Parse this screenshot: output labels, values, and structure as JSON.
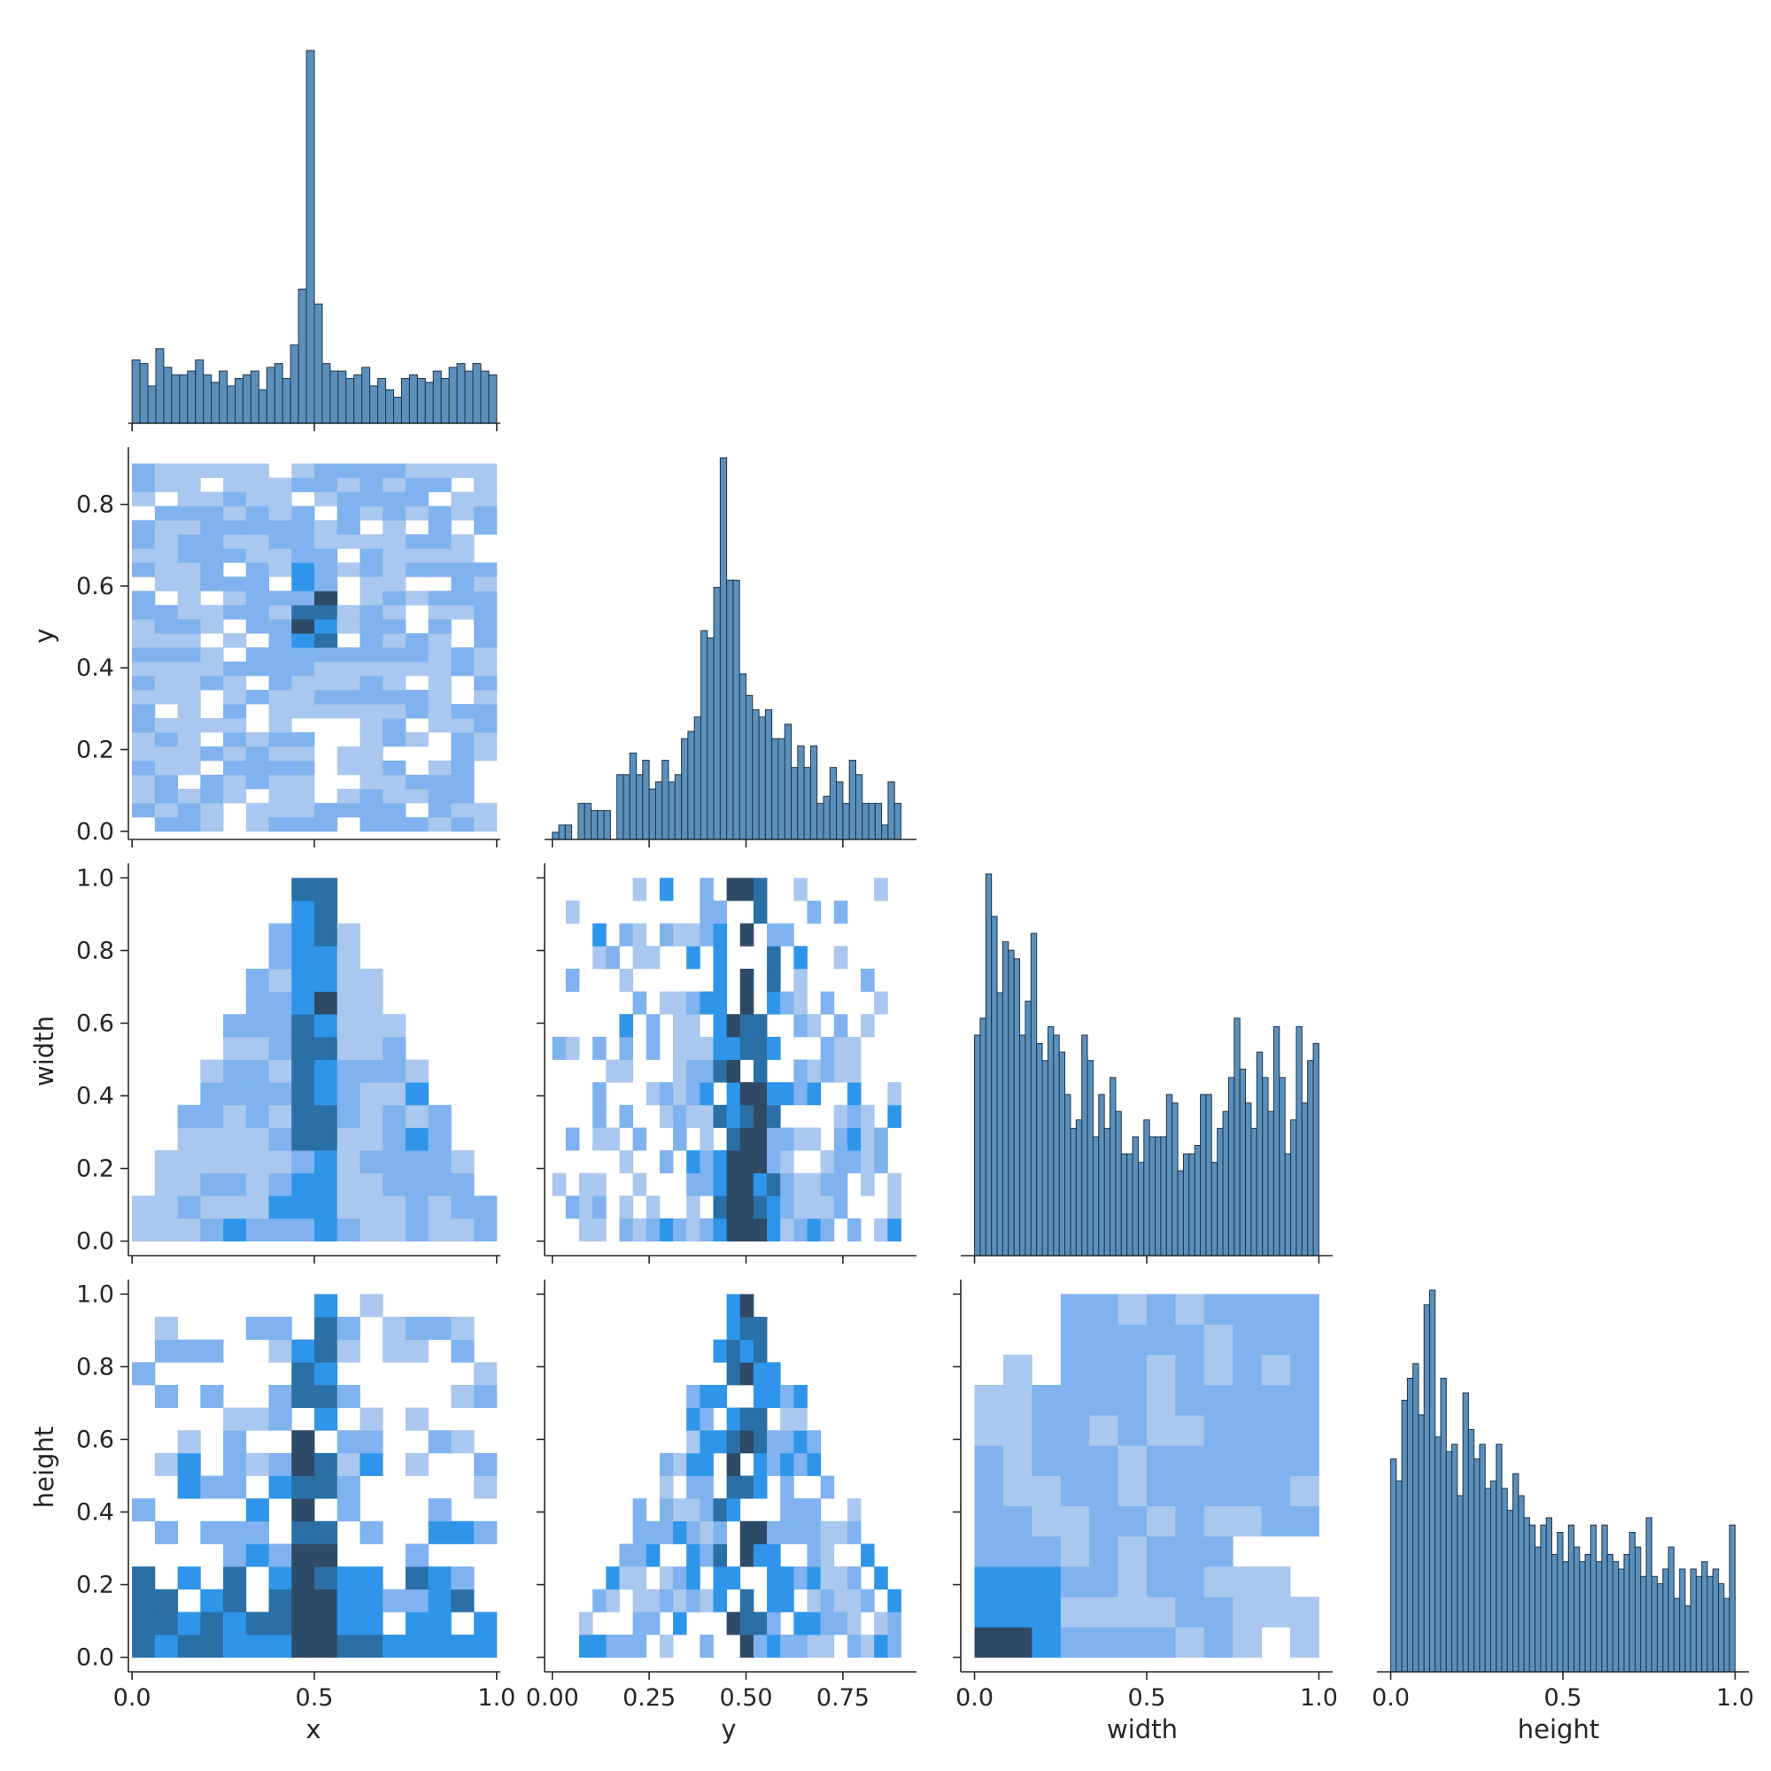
{
  "chart_data": {
    "type": "heatmap",
    "layout": "corner pairplot (diagonal histograms, lower-triangle 2D histograms)",
    "variables": [
      "x",
      "y",
      "width",
      "height"
    ],
    "axis_labels": {
      "x": "x",
      "y": "y",
      "width": "width",
      "height": "height"
    },
    "axis_ranges": {
      "x": [
        -0.01,
        1.01
      ],
      "y": [
        -0.02,
        0.94
      ],
      "width": [
        -0.04,
        1.04
      ],
      "height": [
        -0.04,
        1.04
      ]
    },
    "ticks": {
      "x": {
        "values": [
          0.0,
          0.5,
          1.0
        ],
        "labels": [
          "0.0",
          "0.5",
          "1.0"
        ]
      },
      "y": {
        "values": [
          0.0,
          0.25,
          0.5,
          0.75
        ],
        "labels": [
          "0.00",
          "0.25",
          "0.50",
          "0.75"
        ]
      },
      "y_on_y_axis": {
        "values": [
          0.0,
          0.2,
          0.4,
          0.6,
          0.8
        ],
        "labels": [
          "0.0",
          "0.2",
          "0.4",
          "0.6",
          "0.8"
        ]
      },
      "width": {
        "values": [
          0.0,
          0.5,
          1.0
        ],
        "labels": [
          "0.0",
          "0.5",
          "1.0"
        ]
      },
      "width_on_y_axis": {
        "values": [
          0.0,
          0.2,
          0.4,
          0.6,
          0.8,
          1.0
        ],
        "labels": [
          "0.0",
          "0.2",
          "0.4",
          "0.6",
          "0.8",
          "1.0"
        ]
      },
      "height": {
        "values": [
          0.0,
          0.5,
          1.0
        ],
        "labels": [
          "0.0",
          "0.5",
          "1.0"
        ]
      },
      "height_on_y_axis": {
        "values": [
          0.0,
          0.2,
          0.4,
          0.6,
          0.8,
          1.0
        ],
        "labels": [
          "0.0",
          "0.2",
          "0.4",
          "0.6",
          "0.8",
          "1.0"
        ]
      }
    },
    "histograms": {
      "x": {
        "range": [
          0.0,
          1.0
        ],
        "counts": [
          17,
          16,
          10,
          20,
          15,
          13,
          13,
          14,
          17,
          13,
          11,
          14,
          10,
          12,
          13,
          14,
          9,
          15,
          16,
          12,
          21,
          36,
          100,
          32,
          16,
          14,
          14,
          12,
          13,
          15,
          10,
          12,
          9,
          7,
          12,
          13,
          12,
          11,
          14,
          12,
          15,
          16,
          14,
          16,
          14,
          13
        ]
      },
      "y": {
        "range": [
          0.0,
          0.9
        ],
        "counts": [
          1,
          2,
          2,
          0,
          5,
          5,
          4,
          4,
          4,
          0,
          9,
          9,
          12,
          9,
          11,
          7,
          8,
          11,
          8,
          9,
          14,
          15,
          17,
          29,
          28,
          35,
          53,
          36,
          36,
          23,
          20,
          18,
          17,
          18,
          14,
          14,
          16,
          10,
          13,
          10,
          13,
          5,
          6,
          10,
          8,
          5,
          11,
          9,
          5,
          5,
          5,
          2,
          8,
          5
        ]
      },
      "width": {
        "range": [
          0.0,
          1.0
        ],
        "counts": [
          26,
          28,
          45,
          40,
          31,
          37,
          36,
          35,
          26,
          30,
          38,
          25,
          23,
          27,
          26,
          24,
          19,
          15,
          16,
          26,
          23,
          14,
          19,
          15,
          21,
          17,
          12,
          12,
          14,
          11,
          16,
          14,
          14,
          14,
          19,
          18,
          10,
          12,
          12,
          13,
          19,
          19,
          11,
          15,
          17,
          21,
          28,
          22,
          18,
          15,
          24,
          21,
          17,
          27,
          21,
          12,
          16,
          27,
          18,
          23,
          25
        ]
      },
      "height": {
        "range": [
          0.0,
          1.0
        ],
        "counts": [
          29,
          26,
          37,
          40,
          42,
          35,
          50,
          52,
          32,
          40,
          30,
          31,
          24,
          38,
          33,
          29,
          31,
          25,
          26,
          31,
          25,
          22,
          27,
          24,
          21,
          20,
          17,
          20,
          21,
          16,
          19,
          15,
          20,
          17,
          15,
          16,
          20,
          15,
          20,
          16,
          15,
          14,
          16,
          19,
          17,
          13,
          21,
          13,
          12,
          14,
          17,
          10,
          14,
          9,
          14,
          13,
          15,
          13,
          14,
          12,
          10,
          20
        ]
      }
    },
    "heatmaps": {
      "y_vs_x": {
        "x_range": [
          0.0,
          1.0
        ],
        "y_range": [
          0.0,
          0.9
        ],
        "density_grid_note": "sparse light-blue cells with dark concentration near x=0.5, y=0.45-0.6",
        "peak": {
          "x": 0.5,
          "y": 0.5
        }
      },
      "width_vs_x": {
        "x_range": [
          0.0,
          1.0
        ],
        "y_range": [
          0.0,
          1.0
        ],
        "density_grid_note": "triangle shape: width limited by min(x,1-x)*2; dark column at x=0.5",
        "peak": {
          "x": 0.5,
          "y": 0.95
        }
      },
      "width_vs_y": {
        "x_range": [
          0.0,
          0.9
        ],
        "y_range": [
          0.0,
          1.0
        ],
        "density_grid_note": "dense column near y=0.5 across widths",
        "peak": {
          "x": 0.5,
          "y": 0.85
        }
      },
      "height_vs_x": {
        "x_range": [
          0.0,
          1.0
        ],
        "y_range": [
          0.0,
          1.0
        ],
        "density_grid_note": "dense column at x=0.5; broad low heights",
        "peak": {
          "x": 0.5,
          "y": 0.7
        }
      },
      "height_vs_y": {
        "x_range": [
          0.0,
          0.9
        ],
        "y_range": [
          0.0,
          1.0
        ],
        "density_grid_note": "triangle shape centered at y=0.5",
        "peak": {
          "x": 0.5,
          "y": 0.95
        }
      },
      "height_vs_width": {
        "x_range": [
          0.0,
          1.0
        ],
        "y_range": [
          0.0,
          1.0
        ],
        "density_grid_note": "broad light region, dark corner at low width & low height",
        "peak": {
          "x": 0.05,
          "y": 0.05
        }
      }
    },
    "colors": {
      "bar_fill": "#5b90bd",
      "bar_edge": "#1f3447",
      "heat_light": "#a9c7ef",
      "heat_mid": "#7fb2ee",
      "heat_bright": "#2f95ea",
      "heat_dark": "#2a6fa6",
      "heat_darkest": "#2f4a66"
    }
  }
}
